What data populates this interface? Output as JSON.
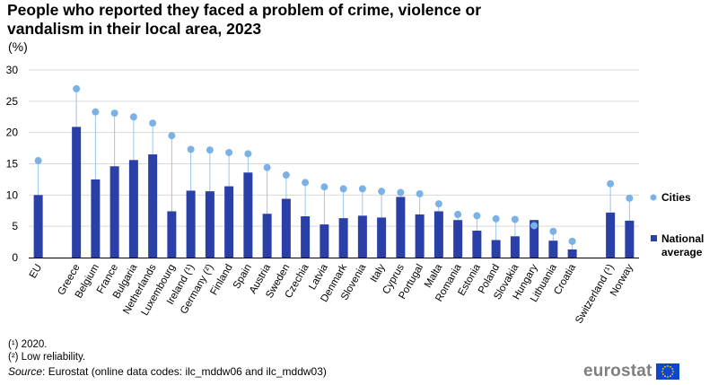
{
  "title": "People who reported they faced a problem of crime, violence or vandalism in their local area, 2023",
  "unit": "(%)",
  "colors": {
    "cities": "#7ab1e6",
    "national": "#2a3fa8",
    "grid": "#d9d9d9",
    "connector": "#9cc4ea"
  },
  "chart_data": {
    "type": "bar",
    "title": "People who reported they faced a problem of crime, violence or vandalism in their local area, 2023",
    "xlabel": "",
    "ylabel": "(%)",
    "ylim": [
      0,
      30
    ],
    "yticks": [
      0,
      5,
      10,
      15,
      20,
      25,
      30
    ],
    "categories": [
      "EU",
      "Greece",
      "Belgium",
      "France",
      "Bulgaria",
      "Netherlands",
      "Luxembourg",
      "Ireland (¹)",
      "Germany (²)",
      "Finland",
      "Spain",
      "Austria",
      "Sweden",
      "Czechia",
      "Latvia",
      "Denmark",
      "Slovenia",
      "Italy",
      "Cyprus",
      "Portugal",
      "Malta",
      "Romania",
      "Estonia",
      "Poland",
      "Slovakia",
      "Hungary",
      "Lithuania",
      "Croatia",
      "Switzerland (¹)",
      "Norway"
    ],
    "slots": [
      0,
      2,
      3,
      4,
      5,
      6,
      7,
      8,
      9,
      10,
      11,
      12,
      13,
      14,
      15,
      16,
      17,
      18,
      19,
      20,
      21,
      22,
      23,
      24,
      25,
      26,
      27,
      28,
      30,
      31
    ],
    "series": [
      {
        "name": "National average",
        "marker": "bar",
        "values": [
          10.0,
          20.9,
          12.5,
          14.6,
          15.6,
          16.5,
          7.4,
          10.7,
          10.6,
          11.4,
          13.6,
          7.0,
          9.4,
          6.6,
          5.3,
          6.3,
          6.7,
          6.4,
          9.7,
          6.9,
          7.4,
          6.0,
          4.3,
          2.8,
          3.4,
          6.0,
          2.7,
          1.3,
          7.2,
          5.9
        ]
      },
      {
        "name": "Cities",
        "marker": "dot",
        "values": [
          15.5,
          27.0,
          23.3,
          23.1,
          22.5,
          21.5,
          19.5,
          17.3,
          17.2,
          16.8,
          16.6,
          14.4,
          13.2,
          12.0,
          11.3,
          11.0,
          11.0,
          10.6,
          10.4,
          10.2,
          8.6,
          6.9,
          6.7,
          6.2,
          6.1,
          5.1,
          4.2,
          2.6,
          11.8,
          9.5
        ]
      }
    ],
    "legend": {
      "position": "right",
      "entries": [
        "Cities",
        "National average"
      ]
    },
    "grid": true
  },
  "footnotes": [
    "(¹) 2020.",
    "(²) Low reliability."
  ],
  "source": {
    "label": "Source",
    "text": ": Eurostat (online data codes: ilc_mddw06 and ilc_mddw03)"
  },
  "logo": {
    "text": "eurostat",
    "flag_icon": "eu-flag-icon"
  }
}
